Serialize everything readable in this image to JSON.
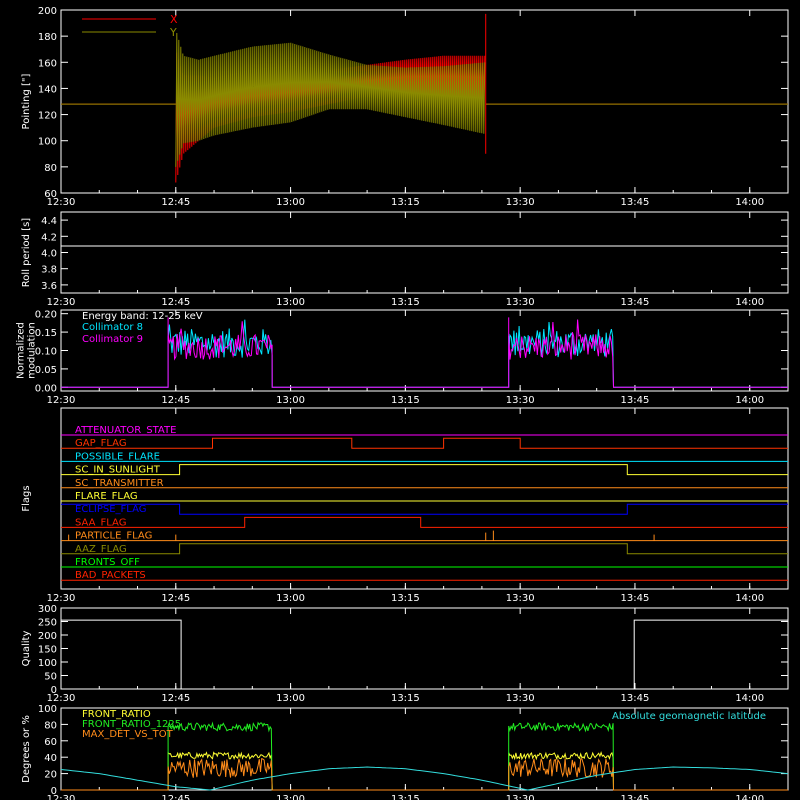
{
  "colors": {
    "background": "#000000",
    "axes": "#ffffff",
    "x_pointing": "#ff0000",
    "y_pointing": "#8a8a00",
    "collimator8": "#00e5ff",
    "collimator9": "#ff00ff",
    "front_ratio": "#ffff33",
    "front_ratio_1225": "#22ee22",
    "max_det_vs_tot": "#ff8c1a",
    "geomag_latitude": "#33dddd"
  },
  "time_axis": {
    "start_minutes": 750,
    "end_minutes": 845,
    "tick_labels": [
      "12:30",
      "12:45",
      "13:00",
      "13:15",
      "13:30",
      "13:45",
      "14:00"
    ],
    "tick_minutes": [
      750,
      765,
      780,
      795,
      810,
      825,
      840
    ]
  },
  "chart_data": [
    {
      "type": "line",
      "ylabel": "Pointing [\"]",
      "ylim": [
        60,
        200
      ],
      "yticks": [
        "60",
        "80",
        "100",
        "120",
        "140",
        "160",
        "180",
        "200"
      ],
      "yticks_values": [
        60,
        80,
        100,
        120,
        140,
        160,
        180,
        200
      ],
      "legend": "top-left",
      "series": [
        {
          "name": "X",
          "color_key": "x_pointing",
          "baseline": 128,
          "active_range": [
            765,
            805.5
          ],
          "envelope_x": [
            765,
            766,
            768,
            770,
            775,
            780,
            785,
            790,
            795,
            800,
            805.5
          ],
          "envelope_upper": [
            170,
            150,
            150,
            148,
            150,
            152,
            154,
            158,
            162,
            165,
            165
          ],
          "envelope_lower": [
            68,
            90,
            100,
            110,
            118,
            122,
            128,
            134,
            136,
            134,
            132
          ]
        },
        {
          "name": "Y",
          "color_key": "y_pointing",
          "baseline": 128,
          "active_range": [
            765,
            805.5
          ],
          "envelope_x": [
            765,
            766,
            768,
            770,
            775,
            780,
            785,
            790,
            795,
            800,
            805.5
          ],
          "envelope_upper": [
            185,
            165,
            162,
            165,
            172,
            175,
            166,
            158,
            156,
            157,
            160
          ],
          "envelope_lower": [
            80,
            98,
            100,
            104,
            110,
            114,
            124,
            124,
            118,
            112,
            105
          ]
        }
      ]
    },
    {
      "type": "line",
      "ylabel": "Roll period [s]",
      "ylim": [
        3.5,
        4.5
      ],
      "yticks": [
        "3.6",
        "3.8",
        "4.0",
        "4.2",
        "4.4"
      ],
      "yticks_values": [
        3.6,
        3.8,
        4.0,
        4.2,
        4.4
      ],
      "series": [
        {
          "name": "",
          "color_key": "axes",
          "x": [
            750,
            845
          ],
          "y": [
            4.08,
            4.08
          ]
        }
      ]
    },
    {
      "type": "line",
      "ylabel": "Normalized\nmodulation",
      "ylim": [
        -0.01,
        0.21
      ],
      "yticks": [
        "0.00",
        "0.05",
        "0.10",
        "0.15",
        "0.20"
      ],
      "yticks_values": [
        0,
        0.05,
        0.1,
        0.15,
        0.2
      ],
      "annotation": "Energy band: 12-25 keV",
      "legend": "top-left",
      "series": [
        {
          "name": "Collimator 8",
          "color_key": "collimator8",
          "level": 0.12,
          "spread": 0.04,
          "intervals": [
            [
              764,
              777.6
            ],
            [
              808.5,
              822.2
            ]
          ]
        },
        {
          "name": "Collimator 9",
          "color_key": "collimator9",
          "level": 0.11,
          "spread": 0.035,
          "intervals": [
            [
              764,
              777.6
            ],
            [
              808.5,
              822.2
            ]
          ]
        }
      ]
    },
    {
      "type": "line",
      "ylabel": "Flags",
      "series": [
        {
          "name": "ATTENUATOR_STATE",
          "color": "#ff00ff",
          "steps": [
            [
              750,
              0
            ],
            [
              845,
              0
            ]
          ]
        },
        {
          "name": "GAP_FLAG",
          "color": "#ff3300",
          "steps": [
            [
              750,
              0
            ],
            [
              769.8,
              1
            ],
            [
              788,
              0
            ],
            [
              800,
              1
            ],
            [
              810,
              0
            ],
            [
              845,
              0
            ]
          ]
        },
        {
          "name": "POSSIBLE_FLARE",
          "color": "#00e5ff",
          "steps": [
            [
              750,
              0
            ],
            [
              845,
              0
            ]
          ]
        },
        {
          "name": "SC_IN_SUNLIGHT",
          "color": "#ffff33",
          "steps": [
            [
              750,
              0
            ],
            [
              765.5,
              1
            ],
            [
              824,
              0
            ],
            [
              845,
              0
            ]
          ]
        },
        {
          "name": "SC_TRANSMITTER",
          "color": "#ff8c1a",
          "steps": [
            [
              750,
              0
            ],
            [
              845,
              0
            ]
          ]
        },
        {
          "name": "FLARE_FLAG",
          "color": "#ffff33",
          "steps": [
            [
              750,
              0
            ],
            [
              845,
              0
            ]
          ]
        },
        {
          "name": "ECLIPSE_FLAG",
          "color": "#0000ff",
          "steps": [
            [
              750,
              1
            ],
            [
              765.5,
              0
            ],
            [
              824,
              1
            ],
            [
              845,
              1
            ]
          ]
        },
        {
          "name": "SAA_FLAG",
          "color": "#ff2200",
          "steps": [
            [
              750,
              0
            ],
            [
              774,
              1
            ],
            [
              797,
              0
            ],
            [
              845,
              0
            ]
          ]
        },
        {
          "name": "PARTICLE_FLAG",
          "color": "#ff8c1a",
          "steps": [
            [
              750,
              0
            ],
            [
              845,
              0
            ]
          ]
        },
        {
          "name": "AAZ_FLAG",
          "color": "#8a8a00",
          "steps": [
            [
              750,
              0
            ],
            [
              765.5,
              1
            ],
            [
              824,
              0
            ],
            [
              845,
              0
            ]
          ]
        },
        {
          "name": "FRONTS_OFF",
          "color": "#00ff00",
          "steps": [
            [
              750,
              0
            ],
            [
              845,
              0
            ]
          ]
        },
        {
          "name": "BAD_PACKETS",
          "color": "#ff2200",
          "steps": [
            [
              750,
              0
            ],
            [
              845,
              0
            ]
          ]
        }
      ]
    },
    {
      "type": "line",
      "ylabel": "Quality",
      "ylim": [
        0,
        300
      ],
      "yticks": [
        "0",
        "50",
        "100",
        "150",
        "200",
        "250",
        "300"
      ],
      "yticks_values": [
        0,
        50,
        100,
        150,
        200,
        250,
        300
      ],
      "series": [
        {
          "name": "",
          "color_key": "axes",
          "x": [
            750,
            765.7,
            765.7,
            824.9,
            824.9,
            845
          ],
          "y": [
            255,
            255,
            0,
            0,
            255,
            255
          ]
        }
      ]
    },
    {
      "type": "line",
      "ylabel": "Degrees or %",
      "ylim": [
        0,
        100
      ],
      "yticks": [
        "0",
        "20",
        "40",
        "60",
        "80",
        "100"
      ],
      "yticks_values": [
        0,
        20,
        40,
        60,
        80,
        100
      ],
      "legend": "top-left",
      "series": [
        {
          "name": "FRONT_RATIO",
          "color_key": "front_ratio",
          "level": 42,
          "spread": 4,
          "intervals": [
            [
              764,
              777.6
            ],
            [
              808.5,
              822.2
            ]
          ]
        },
        {
          "name": "FRONT_RATIO_1225",
          "color_key": "front_ratio_1225",
          "level": 77,
          "spread": 5,
          "intervals": [
            [
              764,
              777.6
            ],
            [
              808.5,
              822.2
            ]
          ]
        },
        {
          "name": "MAX_DET_VS_TOT",
          "color_key": "max_det_vs_tot",
          "level": 27,
          "spread": 12,
          "intervals": [
            [
              764,
              777.6
            ],
            [
              808.5,
              822.2
            ]
          ]
        },
        {
          "name": "Absolute geomagnetic latitude",
          "color_key": "geomag_latitude",
          "x": [
            750,
            755,
            760,
            765,
            769.5,
            775,
            780,
            785,
            790,
            795,
            800,
            805,
            811,
            815,
            820,
            825,
            830,
            835,
            840,
            845
          ],
          "y": [
            25,
            20,
            12,
            4,
            0,
            12,
            20,
            26,
            28,
            26,
            20,
            12,
            0,
            8,
            18,
            25,
            28,
            27,
            25,
            20
          ]
        }
      ]
    }
  ]
}
